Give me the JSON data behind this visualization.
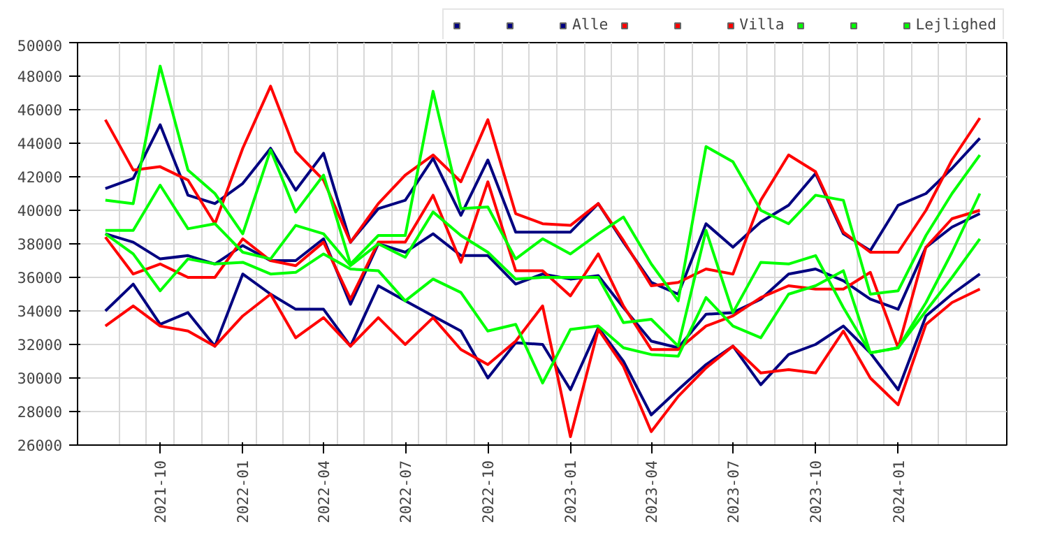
{
  "chart_data": {
    "type": "line",
    "x": [
      "2021-08",
      "2021-09",
      "2021-10",
      "2021-11",
      "2021-12",
      "2022-01",
      "2022-02",
      "2022-03",
      "2022-04",
      "2022-05",
      "2022-06",
      "2022-07",
      "2022-08",
      "2022-09",
      "2022-10",
      "2022-11",
      "2022-12",
      "2023-01",
      "2023-02",
      "2023-03",
      "2023-04",
      "2023-05",
      "2023-06",
      "2023-07",
      "2023-08",
      "2023-09",
      "2023-10",
      "2023-11",
      "2023-12",
      "2024-01",
      "2024-02",
      "2024-03",
      "2024-04"
    ],
    "series": [
      {
        "color": "#000080",
        "values": [
          41300,
          41900,
          45100,
          40900,
          40400,
          41600,
          43700,
          41200,
          43400,
          38100,
          40100,
          40600,
          43100,
          39700,
          43000,
          38700,
          38700,
          38700,
          40400,
          38100,
          35700,
          35000,
          39200,
          37800,
          39300,
          40300,
          42200,
          38600,
          37600,
          40300,
          41000,
          42500,
          44300
        ]
      },
      {
        "color": "#000080",
        "values": [
          38600,
          38100,
          37100,
          37300,
          36800,
          37900,
          37000,
          37000,
          38300,
          34400,
          38000,
          37500,
          38600,
          37300,
          37300,
          35600,
          36200,
          35900,
          36100,
          34200,
          32200,
          31800,
          33800,
          33900,
          34700,
          36200,
          36500,
          35800,
          34700,
          34100,
          37800,
          39000,
          39800
        ]
      },
      {
        "name": "Alle",
        "color": "#000080",
        "values": [
          34000,
          35600,
          33200,
          33900,
          31900,
          36200,
          35000,
          34100,
          34100,
          31900,
          35500,
          34600,
          33700,
          32800,
          30000,
          32100,
          32000,
          29300,
          33000,
          31000,
          27800,
          29300,
          30800,
          31900,
          29600,
          31400,
          32000,
          33100,
          31500,
          29300,
          33700,
          35000,
          36200
        ]
      },
      {
        "color": "#ff0000",
        "values": [
          45400,
          42400,
          42600,
          41800,
          39200,
          43700,
          47400,
          43500,
          41800,
          38100,
          40400,
          42100,
          43300,
          41700,
          45400,
          39800,
          39200,
          39100,
          40400,
          38200,
          35500,
          35700,
          36500,
          36200,
          40600,
          43300,
          42300,
          38700,
          37500,
          37500,
          40000,
          43000,
          45500
        ]
      },
      {
        "color": "#ff0000",
        "values": [
          38400,
          36200,
          36800,
          36000,
          36000,
          38300,
          37000,
          36700,
          38100,
          34700,
          38100,
          38100,
          40900,
          36900,
          41700,
          36400,
          36400,
          34900,
          37400,
          34300,
          31700,
          31700,
          33100,
          33700,
          34800,
          35500,
          35300,
          35300,
          36300,
          31800,
          37800,
          39500,
          40000
        ]
      },
      {
        "name": "Villa",
        "color": "#ff0000",
        "values": [
          33100,
          34300,
          33100,
          32800,
          31900,
          33700,
          35000,
          32400,
          33600,
          31900,
          33600,
          32000,
          33600,
          31700,
          30800,
          32200,
          34300,
          26500,
          32900,
          30700,
          26800,
          28900,
          30600,
          31900,
          30300,
          30500,
          30300,
          32800,
          30000,
          28400,
          33200,
          34500,
          35300
        ]
      },
      {
        "color": "#00ff00",
        "values": [
          40600,
          40400,
          48600,
          42400,
          41000,
          38600,
          43600,
          39900,
          42100,
          36800,
          38500,
          38500,
          47100,
          40100,
          40200,
          37100,
          38300,
          37400,
          38600,
          39600,
          36800,
          34600,
          43800,
          42900,
          40000,
          39200,
          40900,
          40600,
          35000,
          35200,
          38500,
          41000,
          43300
        ]
      },
      {
        "color": "#00ff00",
        "values": [
          38800,
          38800,
          41500,
          38900,
          39200,
          37500,
          37100,
          39100,
          38600,
          36700,
          38000,
          37200,
          39900,
          38500,
          37500,
          35900,
          36000,
          36000,
          36000,
          33300,
          33500,
          31900,
          38800,
          33900,
          36900,
          36800,
          37300,
          34200,
          31500,
          31800,
          34500,
          37500,
          41000
        ]
      },
      {
        "name": "Lejlighed",
        "color": "#00ff00",
        "values": [
          38600,
          37400,
          35200,
          37100,
          36800,
          36900,
          36200,
          36300,
          37400,
          36500,
          36400,
          34600,
          35900,
          35100,
          32800,
          33200,
          29700,
          32900,
          33100,
          31800,
          31400,
          31300,
          34800,
          33100,
          32400,
          35000,
          35500,
          36400,
          31500,
          31800,
          34000,
          36000,
          38300
        ]
      }
    ],
    "ylim": [
      26000,
      50000
    ],
    "yticks": [
      26000,
      28000,
      30000,
      32000,
      34000,
      36000,
      38000,
      40000,
      42000,
      44000,
      46000,
      48000,
      50000
    ],
    "xlim": [
      "2021-07",
      "2024-05"
    ],
    "xticks": [
      {
        "value": "2021-10",
        "label": "2021-10"
      },
      {
        "value": "2022-01",
        "label": "2022-01"
      },
      {
        "value": "2022-04",
        "label": "2022-04"
      },
      {
        "value": "2022-07",
        "label": "2022-07"
      },
      {
        "value": "2022-10",
        "label": "2022-10"
      },
      {
        "value": "2023-01",
        "label": "2023-01"
      },
      {
        "value": "2023-04",
        "label": "2023-04"
      },
      {
        "value": "2023-07",
        "label": "2023-07"
      },
      {
        "value": "2023-10",
        "label": "2023-10"
      },
      {
        "value": "2024-01",
        "label": "2024-01"
      }
    ],
    "grid": true,
    "legend": "top right",
    "line_style": "solid",
    "marker": "none"
  }
}
